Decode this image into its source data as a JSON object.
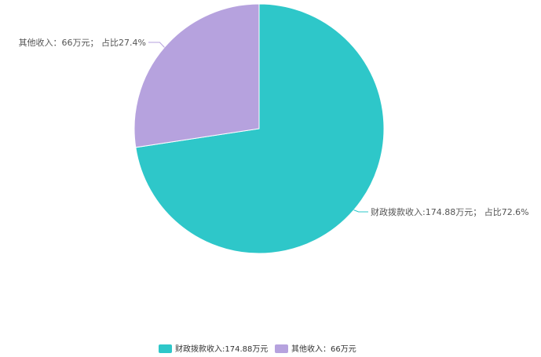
{
  "chart_data": {
    "type": "pie",
    "slices": [
      {
        "name": "财政拨款收入",
        "value": 174.88,
        "percent": 72.6,
        "color": "#2ec7c9",
        "label": "财政拨款收入:174.88万元； 占比72.6%",
        "legend": "财政拨款收入:174.88万元"
      },
      {
        "name": "其他收入",
        "value": 66,
        "percent": 27.4,
        "color": "#b6a2de",
        "label": "其他收入：66万元； 占比27.4%",
        "legend": "其他收入：66万元"
      }
    ],
    "legend_position": "bottom-center",
    "start_angle": "12 o'clock, clockwise"
  }
}
